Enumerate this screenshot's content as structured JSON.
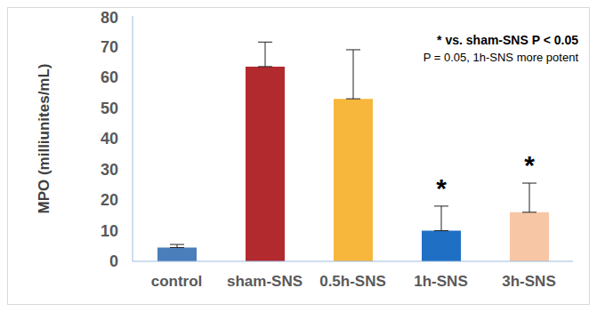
{
  "chart_data": {
    "type": "bar",
    "y_label": "MPO (milliunites/mL)",
    "categories": [
      "control",
      "sham-SNS",
      "0.5h-SNS",
      "1h-SNS",
      "3h-SNS"
    ],
    "values": [
      4.5,
      63.5,
      53,
      10,
      16
    ],
    "errors": [
      1,
      8,
      16,
      8,
      9.5
    ],
    "colors": [
      "#4a7ebb",
      "#b22a2e",
      "#f6b73c",
      "#1f6fc5",
      "#f7c6a5"
    ],
    "significance": [
      null,
      null,
      null,
      "*",
      "*"
    ],
    "annotations": [
      "* vs. sham-SNS P < 0.05",
      "P = 0.05, 1h-SNS more potent"
    ],
    "ylim": [
      0,
      80
    ],
    "yticks": [
      0,
      10,
      20,
      30,
      40,
      50,
      60,
      70,
      80
    ],
    "grid": false
  }
}
